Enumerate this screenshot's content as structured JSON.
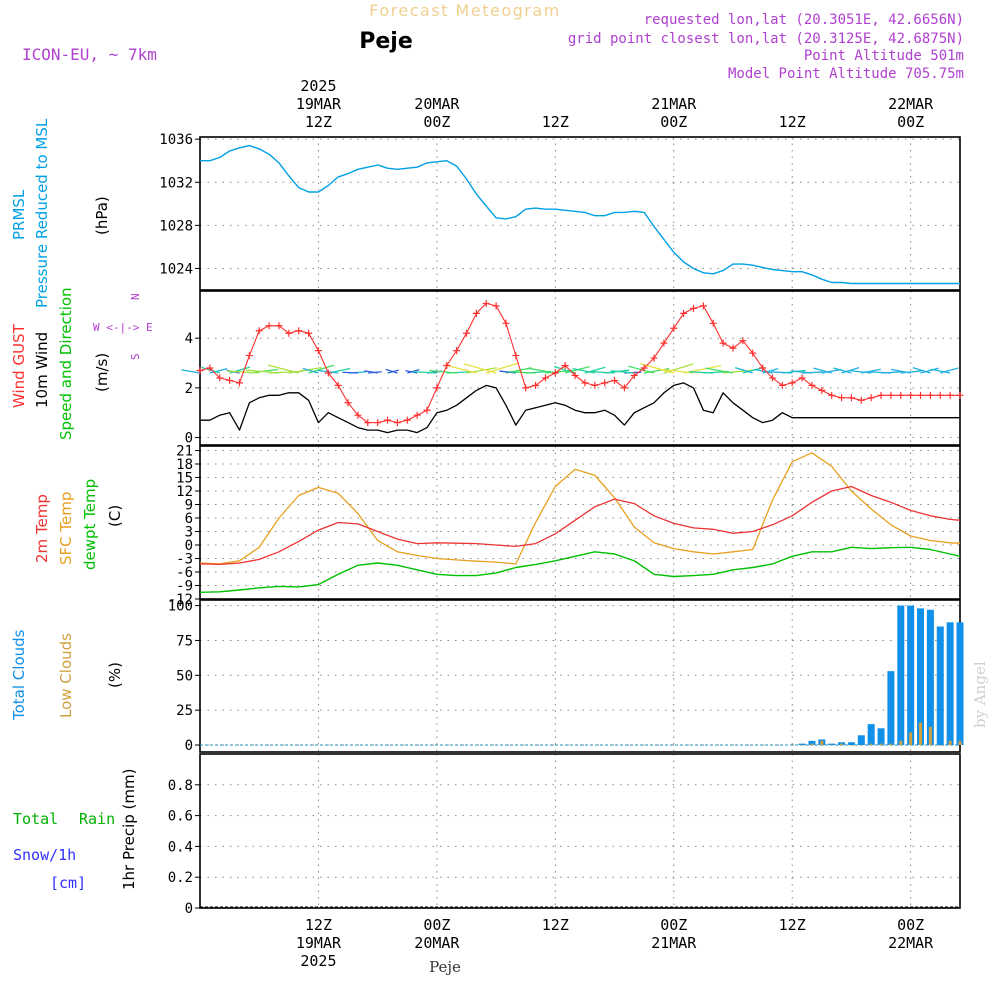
{
  "header": {
    "title_top": "Forecast Meteogram",
    "station": "Peje",
    "model": "ICON-EU, ~ 7km",
    "info_lines": [
      "requested lon,lat (20.3051E, 42.6656N)",
      "grid point closest lon,lat (20.3125E, 42.6875N)",
      "Point Altitude 501m",
      "Model Point Altitude 705.75m"
    ]
  },
  "footer": {
    "station": "Peje"
  },
  "watermark": "by Angel",
  "colors": {
    "pressure": "#00a0e6",
    "gust": "#ff3030",
    "wind": "#000000",
    "t2m": "#ee3333",
    "sfc": "#e8a020",
    "dewpt": "#00c000",
    "total_cloud": "#1090e8",
    "low_cloud": "#d0a040",
    "purple": "#b040d0",
    "rain": "#00b000",
    "snow": "#3030ff"
  },
  "time_axis": {
    "top": [
      {
        "t": 12,
        "lines": [
          "2025",
          "19MAR",
          "12Z"
        ]
      },
      {
        "t": 24,
        "lines": [
          "20MAR",
          "00Z"
        ]
      },
      {
        "t": 36,
        "lines": [
          "12Z"
        ]
      },
      {
        "t": 48,
        "lines": [
          "21MAR",
          "00Z"
        ]
      },
      {
        "t": 60,
        "lines": [
          "12Z"
        ]
      },
      {
        "t": 72,
        "lines": [
          "22MAR",
          "00Z"
        ]
      }
    ],
    "bottom": [
      {
        "t": 12,
        "lines": [
          "12Z",
          "19MAR",
          "2025"
        ]
      },
      {
        "t": 24,
        "lines": [
          "00Z",
          "20MAR"
        ]
      },
      {
        "t": 36,
        "lines": [
          "12Z"
        ]
      },
      {
        "t": 48,
        "lines": [
          "00Z",
          "21MAR"
        ]
      },
      {
        "t": 60,
        "lines": [
          "12Z"
        ]
      },
      {
        "t": 72,
        "lines": [
          "00Z",
          "22MAR"
        ]
      }
    ]
  },
  "chart_data": [
    {
      "type": "line",
      "panel": "pressure",
      "labels": [
        "PRMSL",
        "Pressure Reduced to MSL",
        "(hPa)"
      ],
      "ylim": [
        1022,
        1036.2
      ],
      "yticks": [
        1024,
        1028,
        1032,
        1036
      ],
      "series": [
        {
          "x": [
            0,
            1,
            2,
            3,
            4,
            5,
            6,
            7,
            8,
            9,
            10,
            11,
            12,
            13,
            14,
            15,
            16,
            17,
            18,
            19,
            20,
            21,
            22,
            23,
            24,
            25,
            26,
            27,
            28,
            29,
            30,
            31,
            32,
            33,
            34,
            35,
            36,
            37,
            38,
            39,
            40,
            41,
            42,
            43,
            44,
            45,
            46,
            47,
            48,
            49,
            50,
            51,
            52,
            53,
            54,
            55,
            56,
            57,
            58,
            59,
            60,
            61,
            62,
            63,
            64,
            65,
            66,
            67,
            68,
            69,
            70,
            71,
            72,
            73,
            74,
            75,
            76,
            77
          ],
          "values": [
            1034.0,
            1034.0,
            1034.3,
            1034.9,
            1035.2,
            1035.4,
            1035.1,
            1034.6,
            1033.8,
            1032.6,
            1031.5,
            1031.1,
            1031.1,
            1031.7,
            1032.5,
            1032.8,
            1033.2,
            1033.4,
            1033.6,
            1033.3,
            1033.2,
            1033.3,
            1033.4,
            1033.8,
            1033.9,
            1034.0,
            1033.5,
            1032.3,
            1030.9,
            1029.8,
            1028.7,
            1028.6,
            1028.8,
            1029.5,
            1029.6,
            1029.5,
            1029.5,
            1029.4,
            1029.3,
            1029.2,
            1028.9,
            1028.9,
            1029.2,
            1029.2,
            1029.3,
            1029.2,
            1027.9,
            1026.7,
            1025.5,
            1024.6,
            1024.0,
            1023.6,
            1023.5,
            1023.8,
            1024.4,
            1024.4,
            1024.3,
            1024.1,
            1023.9,
            1023.8,
            1023.7,
            1023.7,
            1023.4,
            1023.0,
            1022.7,
            1022.7,
            1022.6,
            1022.6,
            1022.6,
            1022.6,
            1022.6,
            1022.6,
            1022.6,
            1022.6,
            1022.6,
            1022.6,
            1022.6,
            1022.6
          ]
        }
      ]
    },
    {
      "type": "line",
      "panel": "wind",
      "labels": [
        "Wind GUST",
        "10m Wind",
        "Speed and Direction",
        "(m/s)"
      ],
      "compass": [
        "N",
        "W <-|-> E",
        "S"
      ],
      "ylim": [
        -0.3,
        5.9
      ],
      "yticks": [
        0,
        2,
        4
      ],
      "series": [
        {
          "role": "gust",
          "x": [
            0,
            1,
            2,
            3,
            4,
            5,
            6,
            7,
            8,
            9,
            10,
            11,
            12,
            13,
            14,
            15,
            16,
            17,
            18,
            19,
            20,
            21,
            22,
            23,
            24,
            25,
            26,
            27,
            28,
            29,
            30,
            31,
            32,
            33,
            34,
            35,
            36,
            37,
            38,
            39,
            40,
            41,
            42,
            43,
            44,
            45,
            46,
            47,
            48,
            49,
            50,
            51,
            52,
            53,
            54,
            55,
            56,
            57,
            58,
            59,
            60,
            61,
            62,
            63,
            64,
            65,
            66,
            67,
            68,
            69,
            70,
            71,
            72,
            73,
            74,
            75,
            76,
            77
          ],
          "values": [
            2.7,
            2.8,
            2.4,
            2.3,
            2.2,
            3.3,
            4.3,
            4.5,
            4.5,
            4.2,
            4.3,
            4.2,
            3.5,
            2.6,
            2.1,
            1.4,
            0.9,
            0.6,
            0.6,
            0.7,
            0.6,
            0.7,
            0.9,
            1.1,
            2.0,
            2.9,
            3.5,
            4.2,
            5.0,
            5.4,
            5.3,
            4.6,
            3.3,
            2.0,
            2.1,
            2.4,
            2.6,
            2.9,
            2.5,
            2.2,
            2.1,
            2.2,
            2.3,
            2.0,
            2.5,
            2.8,
            3.2,
            3.8,
            4.4,
            5.0,
            5.2,
            5.3,
            4.6,
            3.8,
            3.6,
            3.9,
            3.4,
            2.8,
            2.4,
            2.1,
            2.2,
            2.4,
            2.1,
            1.9,
            1.7,
            1.6,
            1.6,
            1.5,
            1.6,
            1.7,
            1.7,
            1.7,
            1.7,
            1.7,
            1.7,
            1.7,
            1.7,
            1.7
          ]
        },
        {
          "role": "wind",
          "x": [
            0,
            1,
            2,
            3,
            4,
            5,
            6,
            7,
            8,
            9,
            10,
            11,
            12,
            13,
            14,
            15,
            16,
            17,
            18,
            19,
            20,
            21,
            22,
            23,
            24,
            25,
            26,
            27,
            28,
            29,
            30,
            31,
            32,
            33,
            34,
            35,
            36,
            37,
            38,
            39,
            40,
            41,
            42,
            43,
            44,
            45,
            46,
            47,
            48,
            49,
            50,
            51,
            52,
            53,
            54,
            55,
            56,
            57,
            58,
            59,
            60,
            61,
            62,
            63,
            64,
            65,
            66,
            67,
            68,
            69,
            70,
            71,
            72,
            73,
            74,
            75,
            76,
            77
          ],
          "values": [
            0.7,
            0.7,
            0.9,
            1.0,
            0.3,
            1.4,
            1.6,
            1.7,
            1.7,
            1.8,
            1.8,
            1.5,
            0.6,
            1.0,
            0.8,
            0.6,
            0.4,
            0.3,
            0.3,
            0.2,
            0.3,
            0.3,
            0.2,
            0.4,
            1.0,
            1.1,
            1.3,
            1.6,
            1.9,
            2.1,
            2.0,
            1.3,
            0.5,
            1.1,
            1.2,
            1.3,
            1.4,
            1.3,
            1.1,
            1.0,
            1.0,
            1.1,
            0.9,
            0.5,
            1.0,
            1.2,
            1.4,
            1.8,
            2.1,
            2.2,
            2.0,
            1.1,
            1.0,
            1.8,
            1.4,
            1.1,
            0.8,
            0.6,
            0.7,
            1.0,
            0.8,
            0.8,
            0.8,
            0.8,
            0.8,
            0.8,
            0.8,
            0.8,
            0.8,
            0.8,
            0.8,
            0.8,
            0.8,
            0.8,
            0.8,
            0.8,
            0.8,
            0.8
          ]
        }
      ]
    },
    {
      "type": "line",
      "panel": "temperature",
      "labels": [
        "2m Temp",
        "SFC Temp",
        "dewpt Temp",
        "(C)"
      ],
      "ylim": [
        -12,
        22
      ],
      "yticks": [
        -12,
        -9,
        -6,
        -3,
        0,
        3,
        6,
        9,
        12,
        15,
        18,
        21
      ],
      "series": [
        {
          "role": "t2m",
          "x": [
            0,
            2,
            4,
            6,
            8,
            10,
            12,
            14,
            16,
            18,
            20,
            22,
            24,
            26,
            28,
            30,
            32,
            34,
            36,
            38,
            40,
            42,
            44,
            46,
            48,
            50,
            52,
            54,
            56,
            58,
            60,
            62,
            64,
            66,
            68,
            70,
            72,
            74,
            76,
            77
          ],
          "values": [
            -4.2,
            -4.3,
            -4.0,
            -3.2,
            -1.5,
            0.8,
            3.3,
            5.0,
            4.7,
            3.0,
            1.3,
            0.3,
            0.5,
            0.4,
            0.3,
            0.0,
            -0.3,
            0.3,
            2.5,
            5.5,
            8.5,
            10.2,
            9.2,
            6.5,
            4.8,
            3.8,
            3.5,
            2.6,
            3.0,
            4.5,
            6.5,
            9.5,
            12.0,
            13.0,
            11.0,
            9.5,
            7.7,
            6.5,
            5.7,
            5.5
          ]
        },
        {
          "role": "sfc",
          "x": [
            0,
            2,
            4,
            6,
            8,
            10,
            12,
            14,
            16,
            18,
            20,
            22,
            24,
            26,
            28,
            30,
            32,
            34,
            36,
            38,
            40,
            42,
            44,
            46,
            48,
            50,
            52,
            54,
            56,
            58,
            60,
            62,
            64,
            66,
            68,
            70,
            72,
            74,
            76,
            77
          ],
          "values": [
            -4.0,
            -4.2,
            -3.5,
            -0.5,
            6.0,
            11.0,
            12.8,
            11.5,
            7.0,
            1.0,
            -1.5,
            -2.3,
            -3.0,
            -3.3,
            -3.6,
            -3.8,
            -4.2,
            5.0,
            13.0,
            16.8,
            15.5,
            10.5,
            4.0,
            0.5,
            -0.8,
            -1.5,
            -2.0,
            -1.5,
            -1.0,
            10.0,
            18.5,
            20.5,
            17.5,
            12.0,
            8.0,
            4.5,
            2.0,
            1.0,
            0.5,
            0.4
          ]
        },
        {
          "role": "dewpt",
          "x": [
            0,
            2,
            4,
            6,
            8,
            10,
            12,
            14,
            16,
            18,
            20,
            22,
            24,
            26,
            28,
            30,
            32,
            34,
            36,
            38,
            40,
            42,
            44,
            46,
            48,
            50,
            52,
            54,
            56,
            58,
            60,
            62,
            64,
            66,
            68,
            70,
            72,
            74,
            76,
            77
          ],
          "values": [
            -10.5,
            -10.4,
            -10.0,
            -9.5,
            -9.2,
            -9.3,
            -8.8,
            -6.5,
            -4.5,
            -4.0,
            -4.5,
            -5.5,
            -6.5,
            -6.8,
            -6.8,
            -6.2,
            -5.0,
            -4.3,
            -3.5,
            -2.5,
            -1.5,
            -2.0,
            -3.5,
            -6.5,
            -7.0,
            -6.8,
            -6.5,
            -5.5,
            -5.0,
            -4.2,
            -2.5,
            -1.5,
            -1.5,
            -0.5,
            -0.8,
            -0.6,
            -0.5,
            -1.0,
            -2.0,
            -2.5
          ]
        }
      ]
    },
    {
      "type": "bar",
      "panel": "clouds",
      "labels": [
        "Total Clouds",
        "Low Clouds",
        "(%)"
      ],
      "ylim": [
        -5,
        104
      ],
      "yticks": [
        0,
        25,
        50,
        75,
        100
      ],
      "series": [
        {
          "role": "total",
          "x": [
            61,
            62,
            63,
            64,
            65,
            66,
            67,
            68,
            69,
            70,
            71,
            72,
            73,
            74,
            75,
            76,
            77
          ],
          "values": [
            1,
            3,
            4,
            1,
            2,
            2,
            7,
            15,
            12,
            53,
            100,
            100,
            98,
            97,
            85,
            88,
            88
          ]
        },
        {
          "role": "low",
          "x": [
            61,
            62,
            63,
            64,
            65,
            66,
            67,
            68,
            69,
            70,
            71,
            72,
            73,
            74,
            75,
            76,
            77
          ],
          "values": [
            0,
            1,
            3,
            0,
            1,
            0,
            0,
            1,
            1,
            1,
            3,
            9,
            16,
            13,
            0,
            3,
            3
          ]
        }
      ]
    },
    {
      "type": "bar",
      "panel": "precip",
      "labels": [
        "Total",
        "Rain",
        "Snow/1h",
        "[cm]",
        "1hr Precip (mm)"
      ],
      "ylim": [
        0,
        1.0
      ],
      "yticks": [
        0,
        0.2,
        0.4,
        0.6,
        0.8
      ],
      "ytick_labels": [
        "0",
        "0.2",
        "0.4",
        "0.6",
        "0.8"
      ],
      "series": [
        {
          "role": "rain",
          "x": [],
          "values": []
        }
      ]
    }
  ]
}
